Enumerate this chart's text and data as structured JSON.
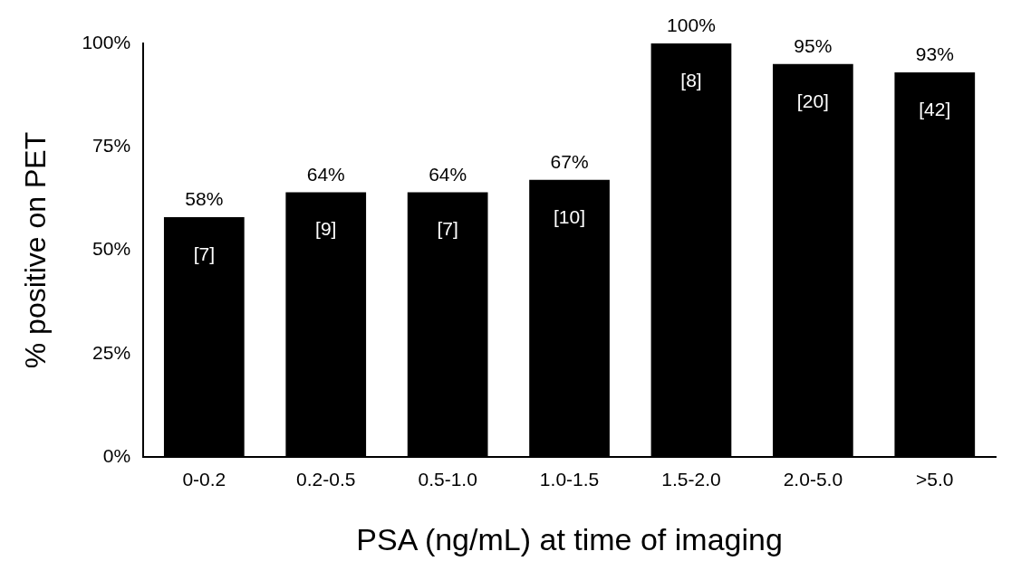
{
  "chart_data": {
    "type": "bar",
    "xlabel": "PSA (ng/mL) at time of imaging",
    "ylabel": "% positive on PET",
    "categories": [
      "0-0.2",
      "0.2-0.5",
      "0.5-1.0",
      "1.0-1.5",
      "1.5-2.0",
      "2.0-5.0",
      ">5.0"
    ],
    "values": [
      58,
      64,
      64,
      67,
      100,
      95,
      93
    ],
    "color": "#000000",
    "value_labels": [
      "58%",
      "64%",
      "64%",
      "67%",
      "100%",
      "95%",
      "93%"
    ],
    "ylim": [
      0,
      100
    ],
    "yticks": [
      {
        "value": 0,
        "label": "0%"
      },
      {
        "value": 25,
        "label": "25%"
      },
      {
        "value": 50,
        "label": "50%"
      },
      {
        "value": 75,
        "label": "75%"
      },
      {
        "value": 100,
        "label": "100%"
      }
    ],
    "grid": false,
    "legend": false,
    "annotations": [
      "[7]",
      "[9]",
      "[7]",
      "[10]",
      "[8]",
      "[20]",
      "[42]"
    ]
  }
}
